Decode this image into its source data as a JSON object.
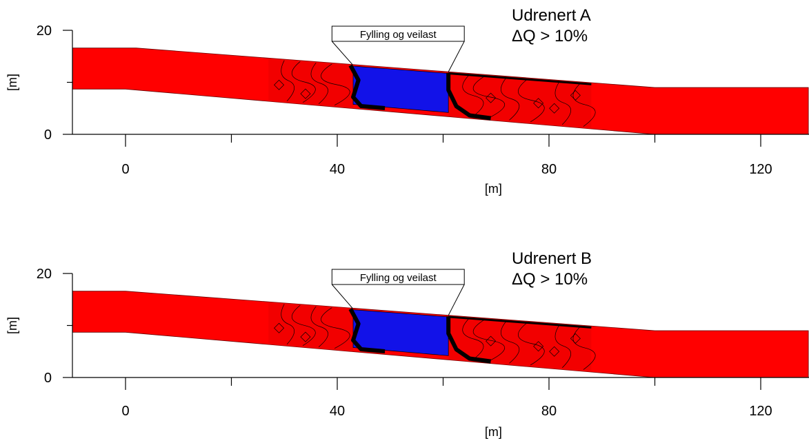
{
  "chart_data": [
    {
      "type": "area",
      "title": "Udrenert A",
      "subtitle": "ΔQ > 10%",
      "xlabel": "[m]",
      "ylabel": "[m]",
      "xlim": [
        -10,
        129
      ],
      "ylim": [
        0,
        20
      ],
      "x_ticks": [
        0,
        40,
        80,
        120
      ],
      "x_minor_ticks": [
        20,
        60,
        100
      ],
      "y_ticks": [
        0,
        20
      ],
      "y_minor_ticks": [
        10
      ],
      "annotation": "Fylling og veilast",
      "annotation_range_x": [
        39,
        64
      ],
      "slope": {
        "top": [
          [
            -10,
            16.6
          ],
          [
            2,
            16.6
          ],
          [
            100,
            9.0
          ],
          [
            129,
            9.0
          ]
        ],
        "bottom": [
          [
            -10,
            8.7
          ],
          [
            0,
            8.7
          ],
          [
            100,
            0.0
          ],
          [
            129,
            0.0
          ]
        ]
      },
      "stable_zone_x": [
        43,
        61
      ],
      "colors": {
        "slope": "#ff0000",
        "stable_zone": "#1212e8",
        "contour": "#000000"
      }
    },
    {
      "type": "area",
      "title": "Udrenert B",
      "subtitle": "ΔQ > 10%",
      "xlabel": "[m]",
      "ylabel": "[m]",
      "xlim": [
        -10,
        129
      ],
      "ylim": [
        0,
        20
      ],
      "x_ticks": [
        0,
        40,
        80,
        120
      ],
      "x_minor_ticks": [
        20,
        60,
        100
      ],
      "y_ticks": [
        0,
        20
      ],
      "y_minor_ticks": [
        10
      ],
      "annotation": "Fylling og veilast",
      "annotation_range_x": [
        39,
        64
      ],
      "slope": {
        "top": [
          [
            -10,
            16.6
          ],
          [
            0,
            16.6
          ],
          [
            100,
            9.0
          ],
          [
            129,
            9.0
          ]
        ],
        "bottom": [
          [
            -10,
            8.7
          ],
          [
            0,
            8.7
          ],
          [
            100,
            0.0
          ],
          [
            129,
            0.0
          ]
        ]
      },
      "stable_zone_x": [
        43,
        61
      ],
      "colors": {
        "slope": "#ff0000",
        "stable_zone": "#1212e8",
        "contour": "#000000"
      }
    }
  ]
}
